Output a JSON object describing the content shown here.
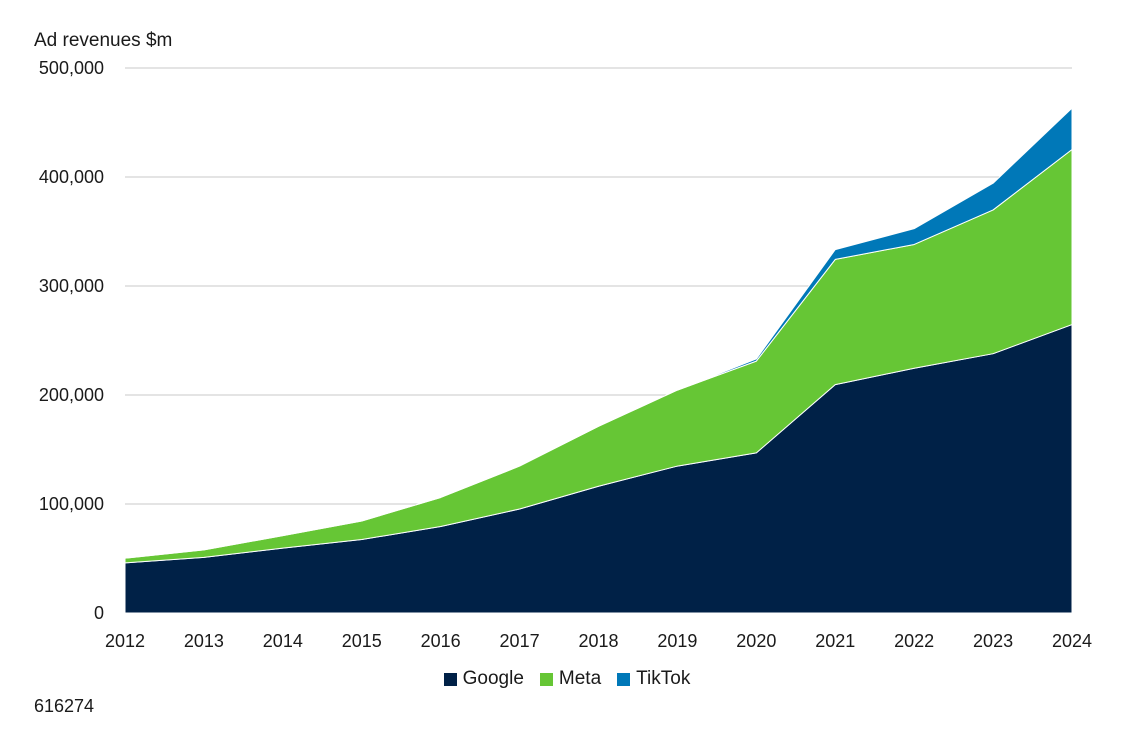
{
  "colors": {
    "Google": "#002147",
    "Meta": "#66c635",
    "TikTok": "#0078b8",
    "grid": "#c8c8c8"
  },
  "chart_data": {
    "type": "area",
    "stacked": true,
    "ylabel": "Ad revenues $m",
    "ylim": [
      0,
      500000
    ],
    "yticks": [
      0,
      100000,
      200000,
      300000,
      400000,
      500000
    ],
    "ytick_labels": [
      "0",
      "100,000",
      "200,000",
      "300,000",
      "400,000",
      "500,000"
    ],
    "x": [
      "2012",
      "2013",
      "2014",
      "2015",
      "2016",
      "2017",
      "2018",
      "2019",
      "2020",
      "2021",
      "2022",
      "2023",
      "2024"
    ],
    "series": [
      {
        "name": "Google",
        "values": [
          46000,
          51000,
          59500,
          67400,
          79400,
          95400,
          116300,
          134800,
          146900,
          209500,
          224500,
          237900,
          264600
        ]
      },
      {
        "name": "Meta",
        "values": [
          4300,
          6900,
          11500,
          17000,
          26600,
          39400,
          55000,
          69700,
          84200,
          114900,
          113600,
          131900,
          160600
        ]
      },
      {
        "name": "TikTok",
        "values": [
          0,
          0,
          0,
          0,
          0,
          0,
          0,
          0,
          2000,
          9000,
          14500,
          24500,
          38000
        ]
      }
    ],
    "grid": "horizontal",
    "legend_position": "bottom-center"
  },
  "footnote": "616274"
}
